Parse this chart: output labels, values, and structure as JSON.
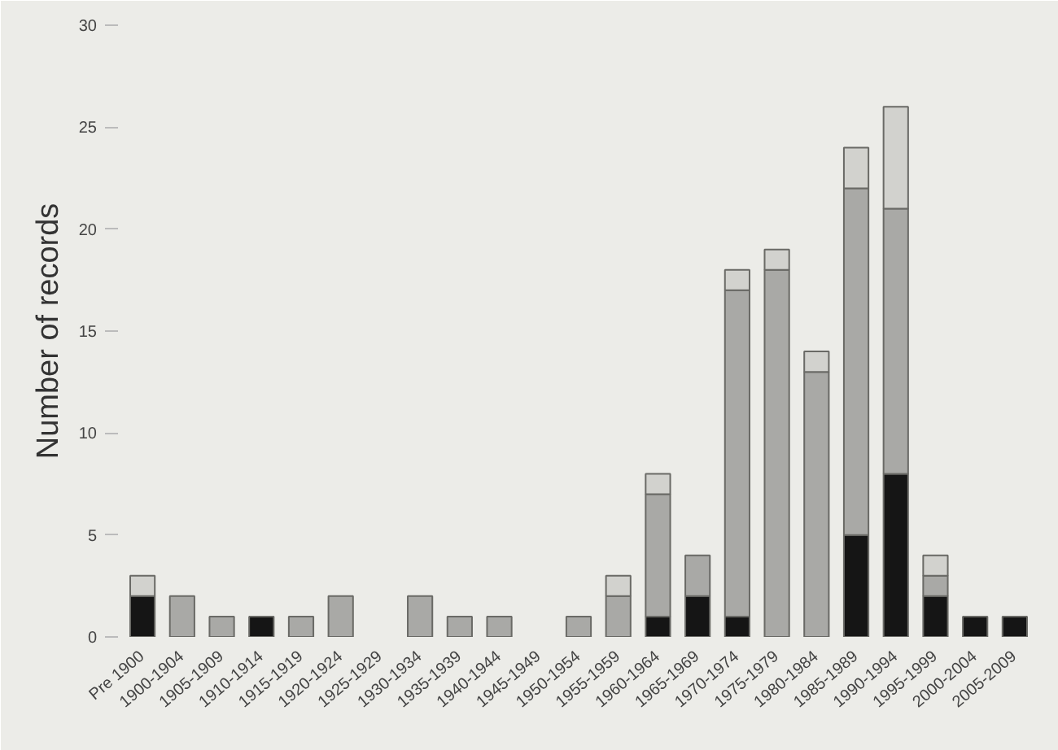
{
  "chart_data": {
    "type": "bar",
    "stacked": true,
    "ylabel": "Number of records",
    "categories": [
      "Pre 1900",
      "1900-1904",
      "1905-1909",
      "1910-1914",
      "1915-1919",
      "1920-1924",
      "1925-1929",
      "1930-1934",
      "1935-1939",
      "1940-1944",
      "1945-1949",
      "1950-1954",
      "1955-1959",
      "1960-1964",
      "1965-1969",
      "1970-1974",
      "1975-1979",
      "1980-1984",
      "1985-1989",
      "1990-1994",
      "1995-1999",
      "2000-2004",
      "2005-2009"
    ],
    "series": [
      {
        "color": "#151515",
        "values": [
          2,
          0,
          0,
          1,
          0,
          0,
          0,
          0,
          0,
          0,
          0,
          0,
          0,
          1,
          2,
          1,
          0,
          0,
          5,
          8,
          2,
          1,
          1
        ]
      },
      {
        "color": "#a9a9a6",
        "values": [
          0,
          2,
          1,
          0,
          1,
          2,
          0,
          2,
          1,
          1,
          0,
          1,
          2,
          6,
          2,
          16,
          18,
          13,
          17,
          13,
          1,
          0,
          0
        ]
      },
      {
        "color": "#d2d2ce",
        "values": [
          1,
          0,
          0,
          0,
          0,
          0,
          0,
          0,
          0,
          0,
          0,
          0,
          1,
          1,
          0,
          1,
          1,
          1,
          2,
          5,
          1,
          0,
          0
        ]
      }
    ],
    "ylim": [
      0,
      30
    ],
    "yticks": [
      0,
      5,
      10,
      15,
      20,
      25,
      30
    ],
    "grid": false
  }
}
